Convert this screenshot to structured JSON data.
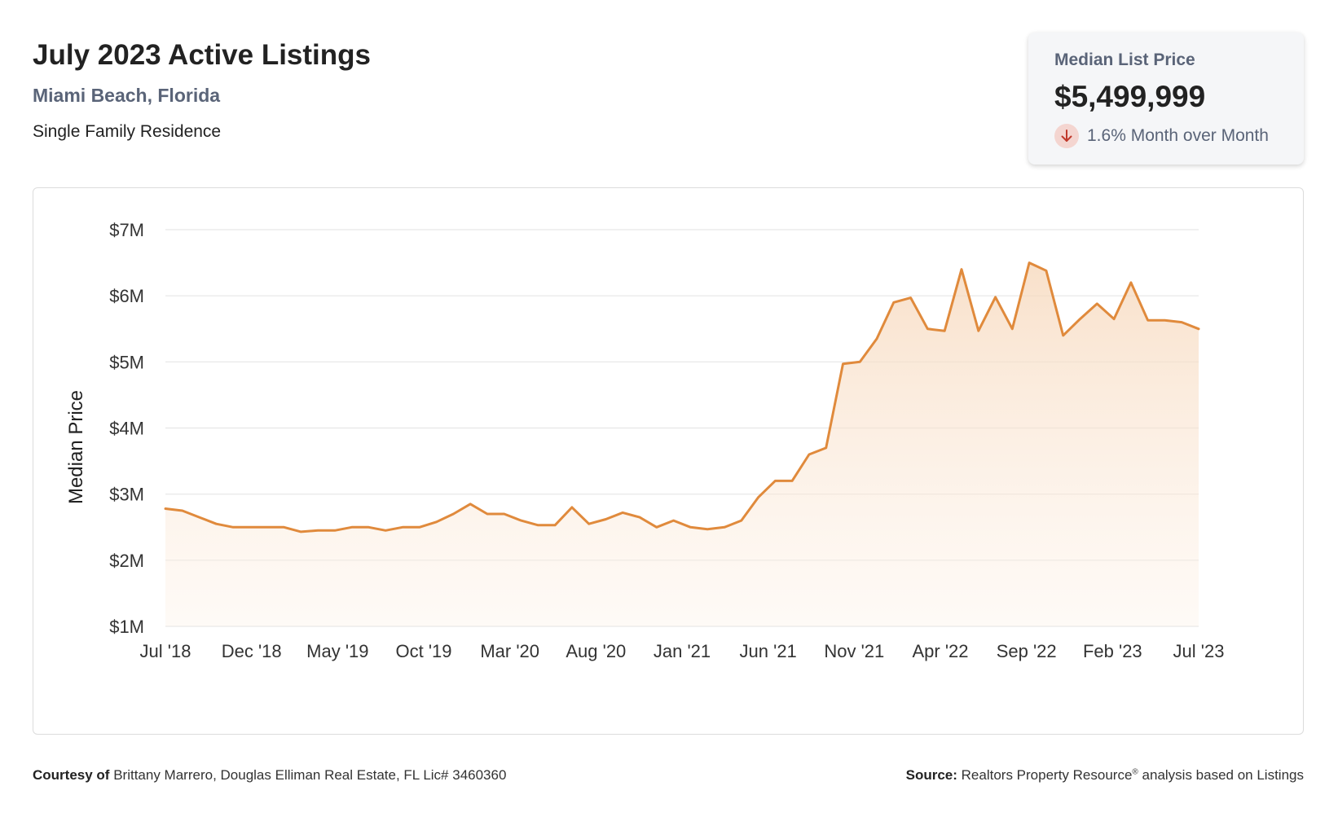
{
  "header": {
    "title": "July 2023 Active Listings",
    "location": "Miami Beach, Florida",
    "property_type": "Single Family Residence"
  },
  "stat_card": {
    "label": "Median List Price",
    "value": "$5,499,999",
    "change_text": "1.6% Month over Month",
    "change_icon": "arrow-down-icon",
    "change_color": "#c0392b"
  },
  "footer": {
    "courtesy_label": "Courtesy of",
    "courtesy_text": "Brittany Marrero, Douglas Elliman Real Estate, FL Lic# 3460360",
    "source_label": "Source:",
    "source_text": "Realtors Property Resource",
    "source_reg": "®",
    "source_suffix": "analysis based on Listings"
  },
  "chart_data": {
    "type": "area",
    "ylabel": "Median Price",
    "ylim": [
      1,
      7
    ],
    "yticks": [
      1,
      2,
      3,
      4,
      5,
      6,
      7
    ],
    "ytick_labels": [
      "$1M",
      "$2M",
      "$3M",
      "$4M",
      "$5M",
      "$6M",
      "$7M"
    ],
    "x_tick_labels": [
      "Jul '18",
      "Dec '18",
      "May '19",
      "Oct '19",
      "Mar '20",
      "Aug '20",
      "Jan '21",
      "Jun '21",
      "Nov '21",
      "Apr '22",
      "Sep '22",
      "Feb '23",
      "Jul '23"
    ],
    "grid": true,
    "line_color": "#e08a3c",
    "series": [
      {
        "values": [
          2.78,
          2.75,
          2.65,
          2.55,
          2.5,
          2.5,
          2.5,
          2.5,
          2.43,
          2.45,
          2.45,
          2.5,
          2.5,
          2.45,
          2.5,
          2.5,
          2.58,
          2.7,
          2.85,
          2.7,
          2.7,
          2.6,
          2.53,
          2.53,
          2.8,
          2.55,
          2.62,
          2.72,
          2.65,
          2.5,
          2.6,
          2.5,
          2.47,
          2.5,
          2.6,
          2.95,
          3.2,
          3.2,
          3.6,
          3.7,
          4.97,
          5.0,
          5.35,
          5.9,
          5.97,
          5.5,
          5.47,
          6.4,
          5.47,
          5.98,
          5.5,
          6.5,
          6.38,
          5.4,
          5.65,
          5.88,
          5.65,
          6.2,
          5.63,
          5.63,
          5.6,
          5.5
        ]
      }
    ]
  }
}
